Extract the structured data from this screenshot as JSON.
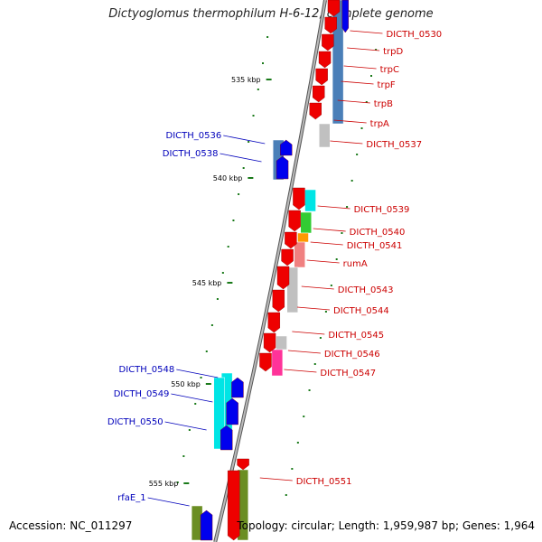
{
  "title": "Dictyoglomus thermophilum H-6-12, complete genome",
  "footer": {
    "accession": "Accession: NC_011297",
    "stats": "Topology: circular; Length: 1,959,987 bp; Genes: 1,964"
  },
  "scale": {
    "ticks": [
      "535 kbp",
      "540 kbp",
      "545 kbp",
      "550 kbp",
      "555 kbp"
    ],
    "tick_color": "#1a7a1a"
  },
  "colors": {
    "backbone": "#777777",
    "left_label": "#0000bb",
    "right_label": "#cc0000",
    "forward_gene": "#0000ee",
    "reverse_gene": "#ee0000"
  },
  "genes_right": [
    "DICTH_0530",
    "trpD",
    "trpC",
    "trpF",
    "trpB",
    "trpA",
    "DICTH_0537",
    "DICTH_0539",
    "DICTH_0540",
    "DICTH_0541",
    "rumA",
    "DICTH_0543",
    "DICTH_0544",
    "DICTH_0545",
    "DICTH_0546",
    "DICTH_0547",
    "DICTH_0551"
  ],
  "genes_left": [
    "DICTH_0536",
    "DICTH_0538",
    "DICTH_0548",
    "DICTH_0549",
    "DICTH_0550",
    "rfaE_1"
  ],
  "category_colors": [
    "#4a7fb8",
    "#00e5e5",
    "#33cc33",
    "#ff9900",
    "#f08080",
    "#c0c0c0",
    "#ff3399",
    "#6b8e23"
  ]
}
